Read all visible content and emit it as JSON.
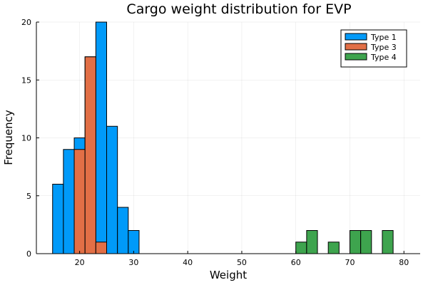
{
  "chart_data": {
    "type": "bar",
    "title": "Cargo weight distribution for EVP",
    "xlabel": "Weight",
    "ylabel": "Frequency",
    "xlim": [
      12,
      83
    ],
    "ylim": [
      0,
      20
    ],
    "xticks": [
      20,
      30,
      40,
      50,
      60,
      70,
      80
    ],
    "yticks": [
      0,
      5,
      10,
      15,
      20
    ],
    "grid": true,
    "legend_position": "top-right",
    "series": [
      {
        "name": "Type 1",
        "color": "#009AF9",
        "bins": [
          {
            "x0": 15,
            "x1": 17,
            "count": 6
          },
          {
            "x0": 17,
            "x1": 19,
            "count": 9
          },
          {
            "x0": 19,
            "x1": 21,
            "count": 10
          },
          {
            "x0": 21,
            "x1": 23,
            "count": 17
          },
          {
            "x0": 23,
            "x1": 25,
            "count": 20
          },
          {
            "x0": 25,
            "x1": 27,
            "count": 11
          },
          {
            "x0": 27,
            "x1": 29,
            "count": 4
          },
          {
            "x0": 29,
            "x1": 31,
            "count": 2
          }
        ]
      },
      {
        "name": "Type 3",
        "color": "#E26F46",
        "bins": [
          {
            "x0": 19,
            "x1": 21,
            "count": 9
          },
          {
            "x0": 21,
            "x1": 23,
            "count": 17
          },
          {
            "x0": 23,
            "x1": 25,
            "count": 1
          }
        ]
      },
      {
        "name": "Type 4",
        "color": "#3EA44E",
        "bins": [
          {
            "x0": 60,
            "x1": 62,
            "count": 1
          },
          {
            "x0": 62,
            "x1": 64,
            "count": 2
          },
          {
            "x0": 66,
            "x1": 68,
            "count": 1
          },
          {
            "x0": 70,
            "x1": 72,
            "count": 2
          },
          {
            "x0": 72,
            "x1": 74,
            "count": 2
          },
          {
            "x0": 76,
            "x1": 78,
            "count": 2
          }
        ]
      }
    ]
  }
}
